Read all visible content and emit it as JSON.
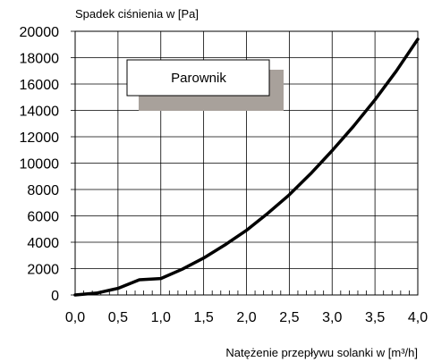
{
  "chart_data": {
    "type": "line",
    "ylabel": "Spadek ciśnienia w [Pa]",
    "xlabel": "Natężenie przepływu solanki w [m³/h]",
    "annotation": "Parownik",
    "xlim": [
      0,
      4.0
    ],
    "ylim": [
      0,
      20000
    ],
    "x_ticks": [
      "0,0",
      "0,5",
      "1,0",
      "1,5",
      "2,0",
      "2,5",
      "3,0",
      "3,5",
      "4,0"
    ],
    "y_ticks": [
      "0",
      "2000",
      "4000",
      "6000",
      "8000",
      "10000",
      "12000",
      "14000",
      "16000",
      "18000",
      "20000"
    ],
    "grid": true,
    "line_color": "#000000",
    "series": [
      {
        "x": [
          0,
          0.25,
          0.5,
          0.75,
          1.0,
          1.25,
          1.5,
          1.75,
          2.0,
          2.25,
          2.5,
          2.75,
          3.0,
          3.25,
          3.5,
          3.75,
          4.0
        ],
        "values": [
          0,
          140,
          500,
          1150,
          1250,
          1950,
          2800,
          3800,
          4900,
          6200,
          7600,
          9200,
          10950,
          12800,
          14800,
          17000,
          19400
        ]
      }
    ]
  }
}
